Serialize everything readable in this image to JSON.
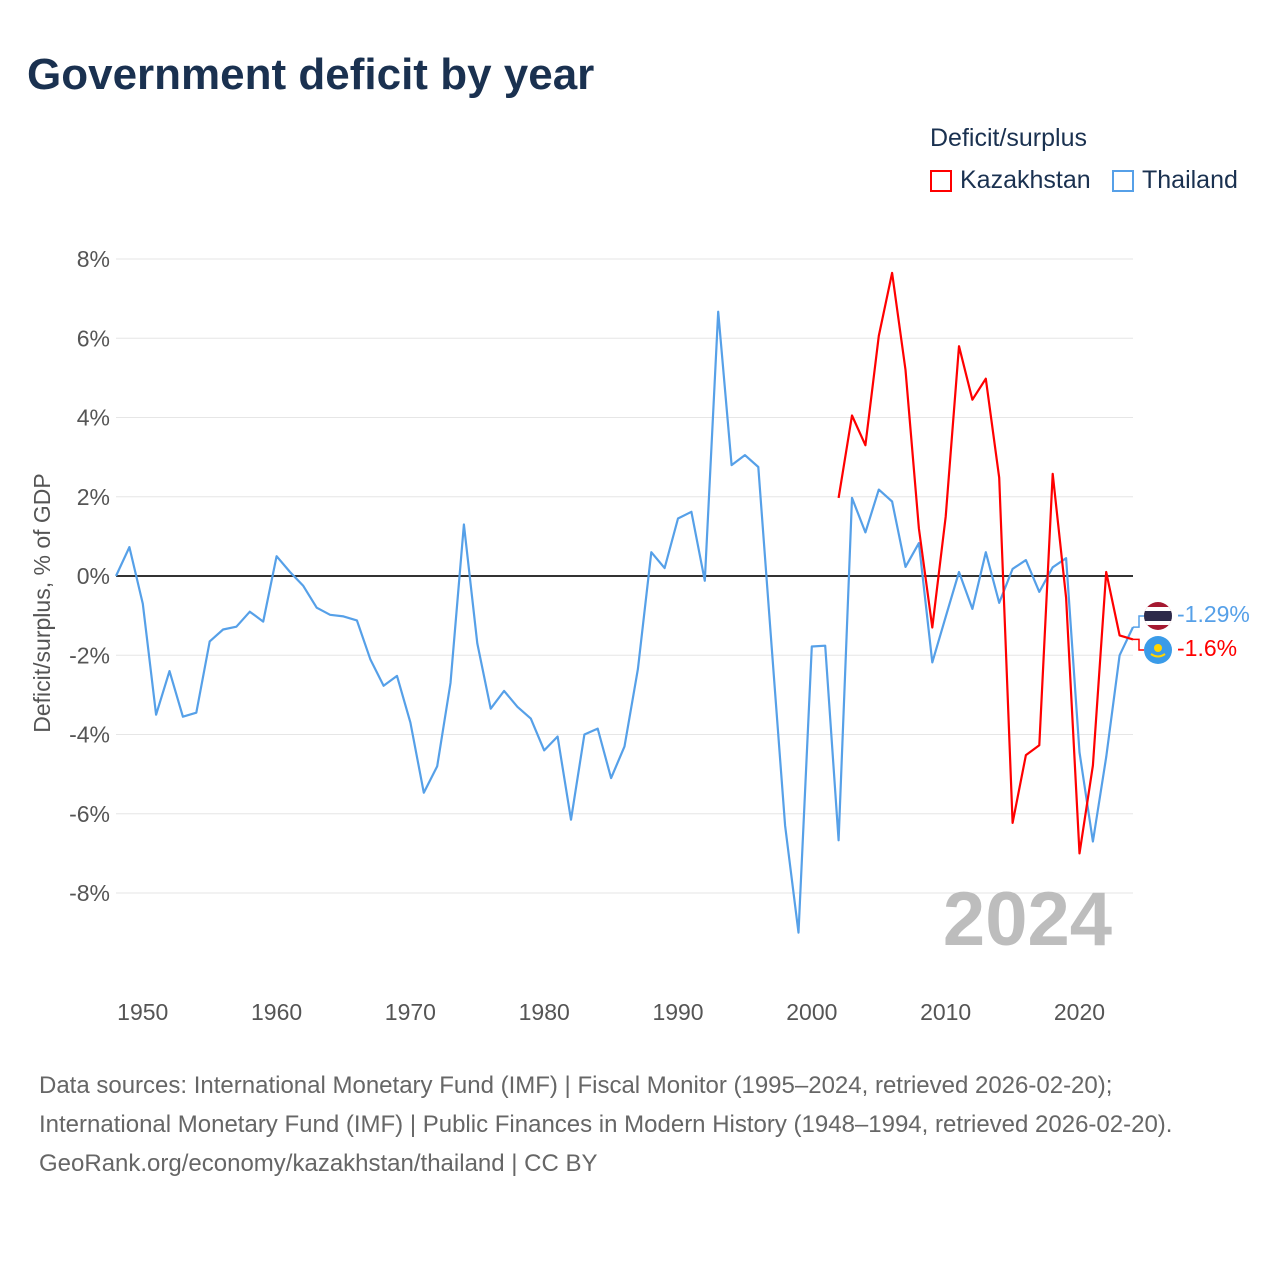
{
  "title": "Government deficit by year",
  "legend": {
    "title": "Deficit/surplus",
    "items": [
      "Kazakhstan",
      "Thailand"
    ]
  },
  "colors": {
    "Kazakhstan": "#ff0000",
    "Thailand": "#56a0e8"
  },
  "end_labels": {
    "Thailand": "-1.29%",
    "Kazakhstan": "-1.6%"
  },
  "flags": {
    "Thailand": "thailand-flag-icon",
    "Kazakhstan": "kazakhstan-flag-icon"
  },
  "footer": {
    "sources": "Data sources: International Monetary Fund (IMF) | Fiscal Monitor (1995–2024, retrieved 2026-02-20); International Monetary Fund (IMF) | Public Finances in Modern History (1948–1994, retrieved 2026-02-20).",
    "credit": "GeoRank.org/economy/kazakhstan/thailand | CC BY"
  },
  "chart_data": {
    "type": "line",
    "title": "Government deficit by year",
    "xlabel": "",
    "ylabel": "Deficit/surplus, % of GDP",
    "xlim": [
      1948,
      2024
    ],
    "ylim": [
      -10,
      8.5
    ],
    "x_ticks": [
      1950,
      1960,
      1970,
      1980,
      1990,
      2000,
      2010,
      2020
    ],
    "y_ticks": [
      8,
      6,
      4,
      2,
      0,
      -2,
      -4,
      -6,
      -8
    ],
    "y_tick_labels": [
      "8%",
      "6%",
      "4%",
      "2%",
      "0%",
      "-2%",
      "-4%",
      "-6%",
      "-8%"
    ],
    "year_label": "2024",
    "grid": true,
    "legend_position": "top-right",
    "series": [
      {
        "name": "Thailand",
        "start_year": 1948,
        "values": [
          0,
          0.73,
          -0.7,
          -3.5,
          -2.4,
          -3.55,
          -3.45,
          -1.65,
          -1.35,
          -1.28,
          -0.9,
          -1.15,
          0.5,
          0.1,
          -0.25,
          -0.8,
          -0.98,
          -1.02,
          -1.12,
          -2.1,
          -2.77,
          -2.52,
          -3.7,
          -5.47,
          -4.8,
          -2.7,
          1.3,
          -1.7,
          -3.35,
          -2.9,
          -3.3,
          -3.6,
          -4.4,
          -4.05,
          -6.15,
          -4.0,
          -3.85,
          -5.1,
          -4.3,
          -2.35,
          0.6,
          0.2,
          1.45,
          1.62,
          -0.12,
          6.67,
          2.8,
          3.05,
          2.75,
          -1.8,
          -6.3,
          -9.0,
          -1.78,
          -1.76,
          -6.67,
          1.97,
          1.1,
          2.18,
          1.88,
          0.23,
          0.83,
          -2.18,
          -1.03,
          0.1,
          -0.83,
          0.6,
          -0.68,
          0.18,
          0.4,
          -0.4,
          0.22,
          0.45,
          -4.45,
          -6.7,
          -4.57,
          -2.0,
          -1.29
        ]
      },
      {
        "name": "Kazakhstan",
        "start_year": 2002,
        "values": [
          1.97,
          4.05,
          3.3,
          6.06,
          7.65,
          5.2,
          1.2,
          -1.3,
          1.5,
          5.8,
          4.45,
          4.98,
          2.48,
          -6.23,
          -4.52,
          -4.27,
          2.58,
          -0.55,
          -7.0,
          -4.78,
          0.1,
          -1.5,
          -1.6
        ]
      }
    ]
  }
}
